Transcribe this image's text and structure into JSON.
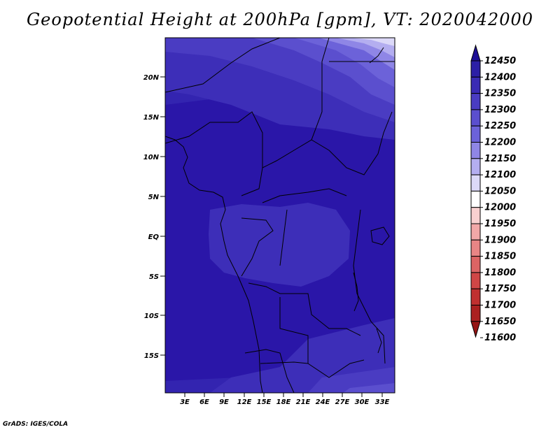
{
  "title": "Geopotential Height at 200hPa [gpm], VT: 2020042000",
  "credit": "GrADS: IGES/COLA",
  "map": {
    "lat_labels": [
      "20N",
      "15N",
      "10N",
      "5N",
      "EQ",
      "5S",
      "10S",
      "15S"
    ],
    "lon_labels": [
      "3E",
      "6E",
      "9E",
      "12E",
      "15E",
      "18E",
      "21E",
      "24E",
      "27E",
      "30E",
      "33E"
    ]
  },
  "colorbar": {
    "levels": [
      "12450",
      "12400",
      "12350",
      "12300",
      "12250",
      "12200",
      "12150",
      "12100",
      "12050",
      "12000",
      "11950",
      "11900",
      "11850",
      "11800",
      "11750",
      "11700",
      "11650",
      "11600"
    ],
    "colors": [
      "#1e0f96",
      "#2c1fa6",
      "#3a2bb4",
      "#4a3cc2",
      "#5b4fce",
      "#6c62d9",
      "#8f86e6",
      "#b4aef0",
      "#dcd9f8",
      "#ffffff",
      "#f9d0d0",
      "#f2a8a8",
      "#e88585",
      "#dc6464",
      "#d04646",
      "#c03030",
      "#ab2020",
      "#961414"
    ]
  },
  "colors": {
    "deep": "#2a16a8",
    "mid": "#3324b0",
    "light": "#4234bc",
    "lighter": "#5a4ccc",
    "lightest": "#7a6fdc",
    "pale": "#a8a0ec",
    "palest": "#d2cef6"
  }
}
